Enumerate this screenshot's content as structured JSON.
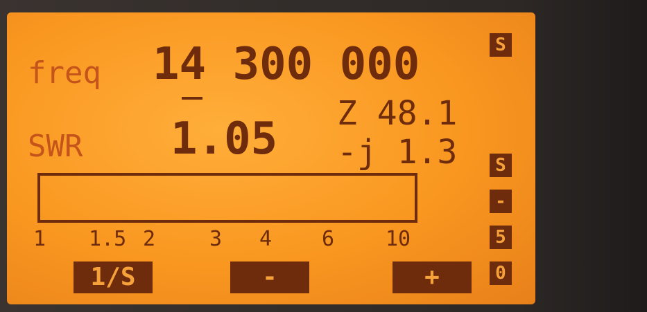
{
  "display": {
    "freq_label": "freq",
    "frequency": "14 300 000",
    "swr_label": "SWR",
    "swr_value": "1.05",
    "impedance_real": "Z 48.1",
    "impedance_imag": "-j 1.3",
    "scale_labels": [
      "1",
      "1.5",
      "2",
      "3",
      "4",
      "6",
      "10"
    ],
    "buttons": [
      "1/S",
      "-",
      "+"
    ],
    "side_top": "S",
    "side_labels": [
      "S",
      "-",
      "5",
      "0"
    ]
  }
}
